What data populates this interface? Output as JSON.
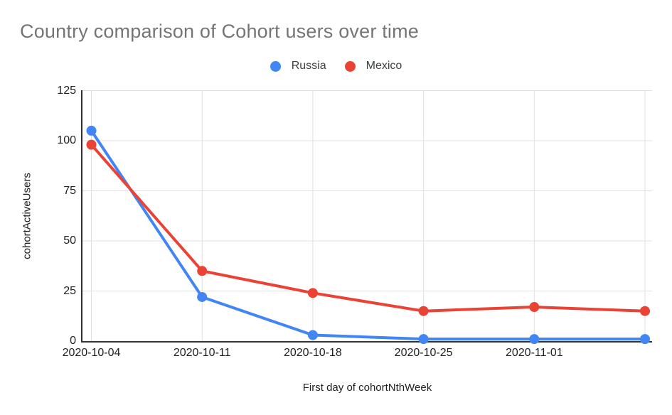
{
  "chart_data": {
    "type": "line",
    "title": "Country comparison of Cohort users over time",
    "xlabel": "First day of cohortNthWeek",
    "ylabel": "cohortActiveUsers",
    "categories": [
      "2020-10-04",
      "2020-10-11",
      "2020-10-18",
      "2020-10-25",
      "2020-11-01",
      ""
    ],
    "y_ticks": [
      0,
      25,
      50,
      75,
      100,
      125
    ],
    "ylim": [
      0,
      125
    ],
    "grid": true,
    "legend_position": "top-center",
    "marker": "circle",
    "series": [
      {
        "name": "Russia",
        "color": "#4285F4",
        "values": [
          105,
          22,
          3,
          1,
          1,
          1
        ]
      },
      {
        "name": "Mexico",
        "color": "#EA4335",
        "values": [
          98,
          35,
          24,
          15,
          17,
          15
        ]
      }
    ],
    "colors": {
      "title_text": "#757575",
      "axis_text": "#202124",
      "legend_text": "#3c4043",
      "gridline": "#e0e0e0",
      "axis_line": "#333333",
      "background": "#ffffff"
    }
  }
}
